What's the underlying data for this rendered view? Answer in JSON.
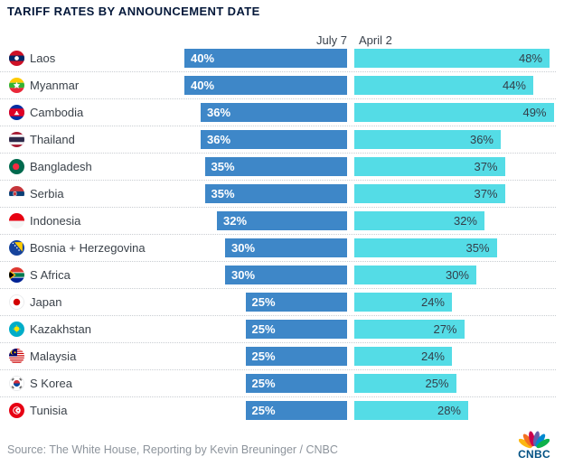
{
  "title": "TARIFF RATES BY ANNOUNCEMENT DATE",
  "columns": {
    "july": "July 7",
    "april": "April 2"
  },
  "colors": {
    "july_bar": "#3e87c8",
    "april_bar": "#54dce6",
    "title_text": "#04183a",
    "country_text": "#3b424a",
    "july_label": "#ffffff",
    "april_label": "#333e49",
    "source_text": "#8d949c",
    "cnbc_blue": "#005083"
  },
  "rows": [
    {
      "country": "Laos",
      "flag": "laos",
      "july7": 40,
      "april2": 48
    },
    {
      "country": "Myanmar",
      "flag": "myanmar",
      "july7": 40,
      "april2": 44
    },
    {
      "country": "Cambodia",
      "flag": "cambodia",
      "july7": 36,
      "april2": 49
    },
    {
      "country": "Thailand",
      "flag": "thailand",
      "july7": 36,
      "april2": 36
    },
    {
      "country": "Bangladesh",
      "flag": "bangladesh",
      "july7": 35,
      "april2": 37
    },
    {
      "country": "Serbia",
      "flag": "serbia",
      "july7": 35,
      "april2": 37
    },
    {
      "country": "Indonesia",
      "flag": "indonesia",
      "july7": 32,
      "april2": 32
    },
    {
      "country": "Bosnia + Herzegovina",
      "flag": "bosnia",
      "july7": 30,
      "april2": 35
    },
    {
      "country": "S Africa",
      "flag": "safrica",
      "july7": 30,
      "april2": 30
    },
    {
      "country": "Japan",
      "flag": "japan",
      "july7": 25,
      "april2": 24
    },
    {
      "country": "Kazakhstan",
      "flag": "kazakhstan",
      "july7": 25,
      "april2": 27
    },
    {
      "country": "Malaysia",
      "flag": "malaysia",
      "july7": 25,
      "april2": 24
    },
    {
      "country": "S Korea",
      "flag": "skorea",
      "july7": 25,
      "april2": 25
    },
    {
      "country": "Tunisia",
      "flag": "tunisia",
      "july7": 25,
      "april2": 28
    }
  ],
  "source": "Source: The White House, Reporting by Kevin Breuninger / CNBC",
  "logo_text": "CNBC",
  "chart_data": {
    "type": "bar",
    "orientation": "horizontal",
    "title": "TARIFF RATES BY ANNOUNCEMENT DATE",
    "categories": [
      "Laos",
      "Myanmar",
      "Cambodia",
      "Thailand",
      "Bangladesh",
      "Serbia",
      "Indonesia",
      "Bosnia + Herzegovina",
      "S Africa",
      "Japan",
      "Kazakhstan",
      "Malaysia",
      "S Korea",
      "Tunisia"
    ],
    "series": [
      {
        "name": "July 7",
        "color": "#3e87c8",
        "values": [
          40,
          40,
          36,
          36,
          35,
          35,
          32,
          30,
          30,
          25,
          25,
          25,
          25,
          25
        ]
      },
      {
        "name": "April 2",
        "color": "#54dce6",
        "values": [
          48,
          44,
          49,
          36,
          37,
          37,
          32,
          35,
          30,
          24,
          27,
          24,
          25,
          28
        ]
      }
    ],
    "unit": "%",
    "xlim": [
      0,
      50
    ],
    "value_labels": true,
    "grid": false,
    "legend_position": "top-as-column-headers",
    "source": "Source: The White House, Reporting by Kevin Breuninger / CNBC"
  }
}
